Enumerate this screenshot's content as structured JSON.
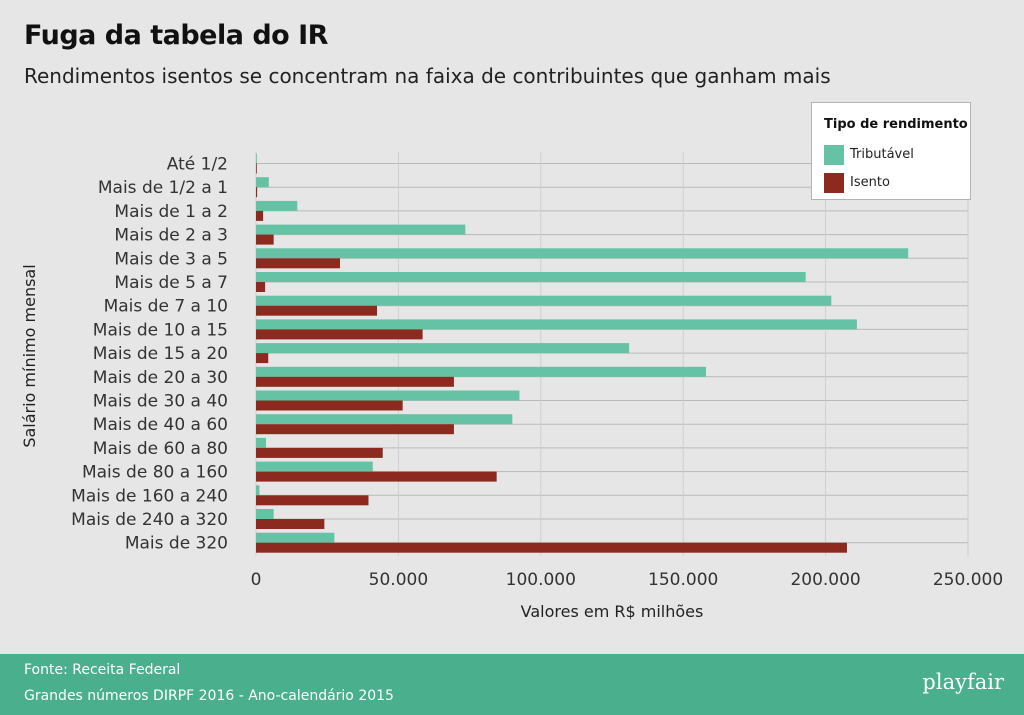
{
  "header": {
    "title": "Fuga da tabela do IR",
    "subtitle": "Rendimentos isentos se concentram na faixa de contribuintes que ganham mais"
  },
  "legend": {
    "title": "Tipo de rendimento",
    "items": [
      {
        "label": "Tributável",
        "color": "#66c2a5"
      },
      {
        "label": "Isento",
        "color": "#8c2a1f"
      }
    ]
  },
  "footer": {
    "source": "Fonte: Receita Federal",
    "note": "Grandes números DIRPF 2016 - Ano-calendário 2015",
    "brand": "playfair"
  },
  "chart_data": {
    "type": "bar",
    "orientation": "horizontal",
    "xlabel": "Valores em R$ milhões",
    "ylabel": "Salário mínimo mensal",
    "xlim": [
      0,
      250000
    ],
    "x_ticks": [
      0,
      50000,
      100000,
      150000,
      200000,
      250000
    ],
    "x_tick_labels": [
      "0",
      "50.000",
      "100.000",
      "150.000",
      "200.000",
      "250.000"
    ],
    "grid": true,
    "legend_position": "top-right",
    "categories": [
      "Até 1/2",
      "Mais de 1/2 a 1",
      "Mais de 1 a 2",
      "Mais de 2 a 3",
      "Mais de 3 a 5",
      "Mais de 5 a 7",
      "Mais de 7 a 10",
      "Mais de 10 a 15",
      "Mais de 15 a 20",
      "Mais de 20 a 30",
      "Mais de 30 a 40",
      "Mais de 40 a 60",
      "Mais de 60 a 80",
      "Mais de 80 a 160",
      "Mais de 160 a 240",
      "Mais de 240 a 320",
      "Mais de 320"
    ],
    "series": [
      {
        "name": "Tributável",
        "color": "#66c2a5",
        "values": [
          300,
          4500,
          14500,
          73500,
          229000,
          193000,
          202000,
          211000,
          131000,
          158000,
          92500,
          90000,
          3500,
          41000,
          1200,
          6200,
          27500
        ]
      },
      {
        "name": "Isento",
        "color": "#8c2a1f",
        "values": [
          100,
          400,
          2500,
          6200,
          29500,
          3200,
          42500,
          58500,
          4300,
          69500,
          51500,
          69500,
          44500,
          84500,
          39500,
          24000,
          207500
        ]
      }
    ]
  }
}
